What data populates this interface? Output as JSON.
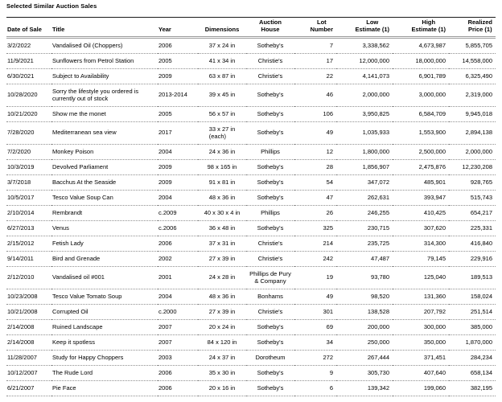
{
  "title": "Selected Similar Auction Sales",
  "table": {
    "columns": [
      {
        "label": "Date of Sale",
        "align": "left"
      },
      {
        "label": "Title",
        "align": "left"
      },
      {
        "label": "Year",
        "align": "left"
      },
      {
        "label": "Dimensions",
        "align": "center"
      },
      {
        "label": "Auction\nHouse",
        "align": "center"
      },
      {
        "label": "Lot\nNumber",
        "align": "right"
      },
      {
        "label": "Low\nEstimate (1)",
        "align": "right"
      },
      {
        "label": "High\nEstimate (1)",
        "align": "right"
      },
      {
        "label": "Realized\nPrice (1)",
        "align": "right"
      }
    ],
    "rows": [
      [
        "3/2/2022",
        "Vandalised Oil (Choppers)",
        "2006",
        "37 x 24 in",
        "Sotheby's",
        "7",
        "3,338,562",
        "4,673,987",
        "5,855,705"
      ],
      [
        "11/9/2021",
        "Sunflowers from Petrol Station",
        "2005",
        "41 x 34 in",
        "Christie's",
        "17",
        "12,000,000",
        "18,000,000",
        "14,558,000"
      ],
      [
        "6/30/2021",
        "Subject to Availability",
        "2009",
        "63 x 87 in",
        "Christie's",
        "22",
        "4,141,073",
        "6,901,789",
        "6,325,490"
      ],
      [
        "10/28/2020",
        "Sorry the lifestyle you ordered is\ncurrently out of stock",
        "2013-2014",
        "39 x 45 in",
        "Sotheby's",
        "46",
        "2,000,000",
        "3,000,000",
        "2,319,000"
      ],
      [
        "10/21/2020",
        "Show me the monet",
        "2005",
        "56 x 57 in",
        "Sotheby's",
        "106",
        "3,950,825",
        "6,584,709",
        "9,945,018"
      ],
      [
        "7/28/2020",
        "Mediterranean sea view",
        "2017",
        "33 x 27 in\n(each)",
        "Sotheby's",
        "49",
        "1,035,933",
        "1,553,900",
        "2,894,138"
      ],
      [
        "7/2/2020",
        "Monkey Poison",
        "2004",
        "24 x 36 in",
        "Phillips",
        "12",
        "1,800,000",
        "2,500,000",
        "2,000,000"
      ],
      [
        "10/3/2019",
        "Devolved Parliament",
        "2009",
        "98 x 165 in",
        "Sotheby's",
        "28",
        "1,856,907",
        "2,475,876",
        "12,230,208"
      ],
      [
        "3/7/2018",
        "Bacchus At the Seaside",
        "2009",
        "91 x 81 in",
        "Sotheby's",
        "54",
        "347,072",
        "485,901",
        "928,765"
      ],
      [
        "10/5/2017",
        "Tesco Value Soup Can",
        "2004",
        "48 x 36 in",
        "Sotheby's",
        "47",
        "262,631",
        "393,947",
        "515,743"
      ],
      [
        "2/10/2014",
        "Rembrandt",
        "c.2009",
        "40 x 30 x 4 in",
        "Phillips",
        "26",
        "246,255",
        "410,425",
        "654,217"
      ],
      [
        "6/27/2013",
        "Venus",
        "c.2006",
        "36 x 48 in",
        "Sotheby's",
        "325",
        "230,715",
        "307,620",
        "225,331"
      ],
      [
        "2/15/2012",
        "Fetish Lady",
        "2006",
        "37 x 31 in",
        "Christie's",
        "214",
        "235,725",
        "314,300",
        "416,840"
      ],
      [
        "9/14/2011",
        "Bird and Grenade",
        "2002",
        "27 x 39 in",
        "Christie's",
        "242",
        "47,487",
        "79,145",
        "229,916"
      ],
      [
        "2/12/2010",
        "Vandalised oil #001",
        "2001",
        "24 x 28 in",
        "Phillips de Pury\n& Company",
        "19",
        "93,780",
        "125,040",
        "189,513"
      ],
      [
        "10/23/2008",
        "Tesco Value Tomato Soup",
        "2004",
        "48 x 36 in",
        "Bonhams",
        "49",
        "98,520",
        "131,360",
        "158,024"
      ],
      [
        "10/21/2008",
        "Corrupted Oil",
        "c.2000",
        "27 x 39 in",
        "Christie's",
        "301",
        "138,528",
        "207,792",
        "251,514"
      ],
      [
        "2/14/2008",
        "Ruined Landscape",
        "2007",
        "20 x 24 in",
        "Sotheby's",
        "69",
        "200,000",
        "300,000",
        "385,000"
      ],
      [
        "2/14/2008",
        "Keep it spotless",
        "2007",
        "84 x 120 in",
        "Sotheby's",
        "34",
        "250,000",
        "350,000",
        "1,870,000"
      ],
      [
        "11/28/2007",
        "Study for Happy Choppers",
        "2003",
        "24 x 37 in",
        "Dorotheum",
        "272",
        "267,444",
        "371,451",
        "284,234"
      ],
      [
        "10/12/2007",
        "The Rude Lord",
        "2006",
        "35 x 30 in",
        "Sotheby's",
        "9",
        "305,730",
        "407,640",
        "658,134"
      ],
      [
        "6/21/2007",
        "Pie Face",
        "2006",
        "20 x 16 in",
        "Sotheby's",
        "6",
        "139,342",
        "199,060",
        "382,195"
      ]
    ]
  }
}
